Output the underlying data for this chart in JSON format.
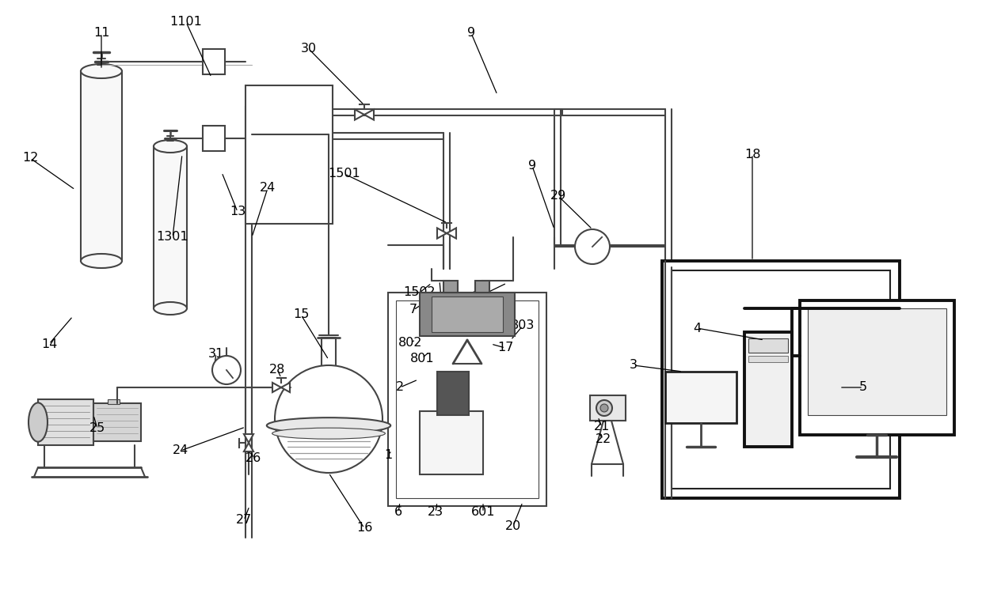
{
  "bg_color": "#ffffff",
  "lc": "#444444",
  "dark": "#1a1a1a",
  "gray": "#777777",
  "lgray": "#cccccc",
  "hatch_gray": "#888888"
}
